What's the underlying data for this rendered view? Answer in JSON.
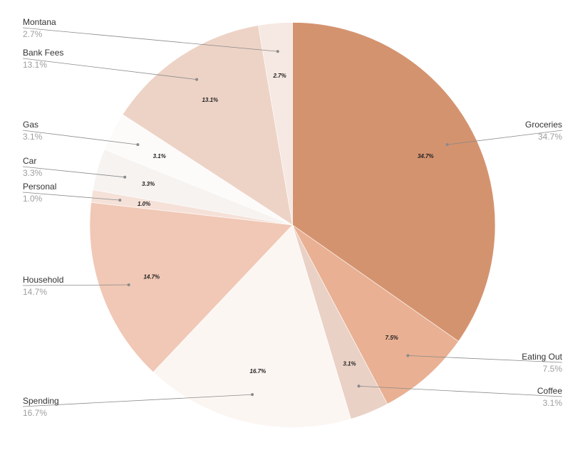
{
  "chart_data": {
    "type": "pie",
    "title": "",
    "legend": "callouts",
    "start_angle_deg": 0,
    "direction": "clockwise",
    "slices": [
      {
        "label": "Groceries",
        "value": 34.7,
        "display": "34.7%",
        "color": "#d4936f"
      },
      {
        "label": "Eating Out",
        "value": 7.5,
        "display": "7.5%",
        "color": "#e9b093"
      },
      {
        "label": "Coffee",
        "value": 3.1,
        "display": "3.1%",
        "color": "#ead1c5"
      },
      {
        "label": "Spending",
        "value": 16.7,
        "display": "16.7%",
        "color": "#fcf6f3"
      },
      {
        "label": "Household",
        "value": 14.7,
        "display": "14.7%",
        "color": "#f0c8b5"
      },
      {
        "label": "Personal",
        "value": 1.0,
        "display": "1.0%",
        "color": "#f5e1d8"
      },
      {
        "label": "Car",
        "value": 3.3,
        "display": "3.3%",
        "color": "#f6f3f1"
      },
      {
        "label": "Gas",
        "value": 3.1,
        "display": "3.1%",
        "color": "#fdfbfa"
      },
      {
        "label": "Bank Fees",
        "value": 13.1,
        "display": "13.1%",
        "color": "#edd3c6"
      },
      {
        "label": "Montana",
        "value": 2.7,
        "display": "2.7%",
        "color": "#f6e8e2"
      }
    ]
  }
}
